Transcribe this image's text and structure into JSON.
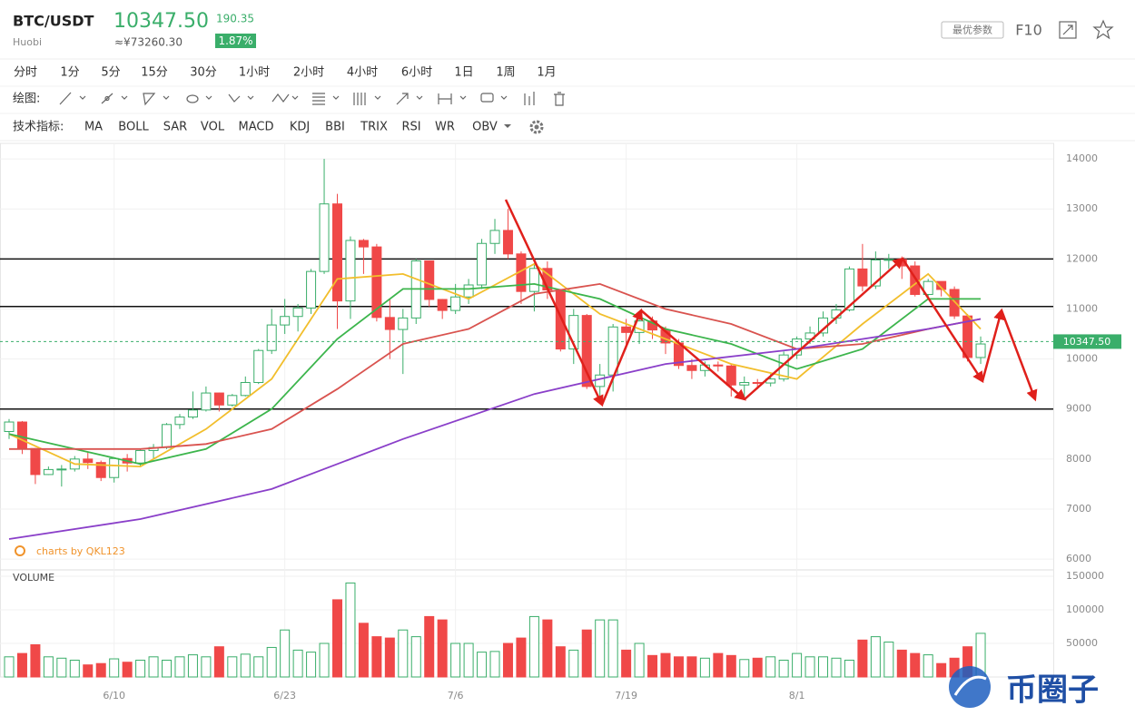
{
  "header": {
    "symbol": "BTC/USDT",
    "exchange": "Huobi",
    "price": "10347.50",
    "cny": "≈¥73260.30",
    "change": "190.35",
    "change_pct": "1.87%",
    "buttons": [
      "最优参数",
      "F10"
    ]
  },
  "periods": {
    "items": [
      "分时",
      "1分",
      "5分",
      "15分",
      "30分",
      "1小时",
      "2小时",
      "4小时",
      "6小时",
      "1日",
      "1周",
      "1月"
    ],
    "active": 9
  },
  "drawing_label": "绘图:",
  "indicators": {
    "label": "技术指标:",
    "items": [
      "MA",
      "BOLL",
      "SAR",
      "VOL",
      "MACD",
      "KDJ",
      "BBI",
      "TRIX",
      "RSI",
      "WR",
      "OBV"
    ],
    "active": [
      0,
      3
    ]
  },
  "watermark": "charts by QKL123",
  "brand": "币圈子",
  "chart_data": {
    "type": "candlestick",
    "categories": [
      null,
      null,
      null,
      null,
      null,
      null,
      null,
      null,
      "6/10",
      null,
      null,
      null,
      null,
      null,
      null,
      null,
      null,
      null,
      null,
      null,
      null,
      "6/23",
      null,
      null,
      null,
      null,
      null,
      null,
      null,
      null,
      null,
      null,
      null,
      null,
      "7/6",
      null,
      null,
      null,
      null,
      null,
      null,
      null,
      null,
      null,
      null,
      null,
      null,
      "7/19",
      null,
      null,
      null,
      null,
      null,
      null,
      null,
      null,
      null,
      null,
      null,
      null,
      "8/1",
      null,
      null,
      null,
      null,
      null,
      null,
      null,
      null,
      null,
      null,
      null,
      null,
      null,
      null
    ],
    "open": [
      8550,
      8740,
      8210,
      7690,
      7790,
      7800,
      8000,
      7930,
      7630,
      8010,
      7920,
      8170,
      8230,
      8690,
      8840,
      8980,
      9320,
      9080,
      9270,
      9530,
      10170,
      10680,
      10850,
      11020,
      11750,
      13100,
      11160,
      12370,
      12240,
      10830,
      10590,
      10820,
      11960,
      11190,
      10970,
      11240,
      11480,
      12310,
      12570,
      12100,
      11350,
      11810,
      11380,
      10200,
      10870,
      9450,
      9680,
      10640,
      10530,
      10760,
      10580,
      10320,
      9870,
      9770,
      9880,
      9860,
      9480,
      9530,
      9520,
      9600,
      10080,
      10400,
      10520,
      10820,
      10980,
      11800,
      11460,
      11980,
      11990,
      11860,
      11290,
      11550,
      11390,
      10860,
      10030
    ],
    "high": [
      8800,
      8760,
      8220,
      7850,
      7880,
      8060,
      8150,
      7970,
      8030,
      8100,
      8200,
      8300,
      8720,
      8900,
      9350,
      9450,
      9330,
      9300,
      9650,
      10200,
      11000,
      11200,
      11100,
      11800,
      14000,
      13300,
      12450,
      12400,
      12300,
      11200,
      11000,
      12000,
      11970,
      11200,
      11500,
      11600,
      12400,
      12800,
      13000,
      12150,
      11900,
      11950,
      11400,
      11000,
      10900,
      9900,
      10700,
      10800,
      10900,
      10850,
      10650,
      10400,
      10000,
      9950,
      9950,
      9900,
      9650,
      9600,
      9700,
      10150,
      10450,
      10650,
      10950,
      11100,
      11850,
      12300,
      12150,
      12100,
      12050,
      11950,
      11600,
      11550,
      11450,
      10900,
      10450
    ],
    "low": [
      8400,
      8100,
      7500,
      7680,
      7450,
      7750,
      7800,
      7560,
      7530,
      7750,
      7840,
      8000,
      8200,
      8600,
      8800,
      8950,
      8950,
      9050,
      9250,
      9500,
      10100,
      10500,
      10550,
      10900,
      11700,
      10600,
      10800,
      11700,
      10750,
      10000,
      9700,
      10700,
      11050,
      10800,
      10900,
      11100,
      11400,
      12100,
      12000,
      11100,
      10950,
      11200,
      10150,
      9900,
      9400,
      9100,
      9350,
      10200,
      10300,
      10400,
      10100,
      9800,
      9600,
      9650,
      9750,
      9250,
      9200,
      9400,
      9450,
      9550,
      10000,
      10300,
      10450,
      10700,
      10950,
      11350,
      11400,
      11800,
      11600,
      11250,
      11200,
      11250,
      10800,
      9950,
      9900
    ],
    "close": [
      8740,
      8210,
      7690,
      7790,
      7800,
      8000,
      7930,
      7630,
      8010,
      7920,
      8170,
      8230,
      8690,
      8840,
      8980,
      9320,
      9080,
      9270,
      9530,
      10170,
      10680,
      10850,
      11020,
      11750,
      13100,
      11160,
      12370,
      12240,
      10830,
      10590,
      10820,
      11960,
      11190,
      10970,
      11240,
      11480,
      12310,
      12570,
      12100,
      11350,
      11810,
      11380,
      10200,
      10870,
      9450,
      9680,
      10640,
      10530,
      10760,
      10580,
      10320,
      9870,
      9770,
      9880,
      9860,
      9480,
      9530,
      9520,
      9600,
      10080,
      10400,
      10520,
      10820,
      10980,
      11800,
      11460,
      11980,
      11990,
      11860,
      11290,
      11550,
      11390,
      10860,
      10030,
      10300
    ],
    "volume": [
      30000,
      35000,
      48000,
      30000,
      28000,
      25000,
      18000,
      20000,
      27000,
      22000,
      25000,
      30000,
      25000,
      30000,
      33000,
      30000,
      45000,
      30000,
      34000,
      30000,
      44000,
      70000,
      40000,
      37000,
      50000,
      115000,
      140000,
      80000,
      60000,
      58000,
      70000,
      60000,
      90000,
      85000,
      50000,
      50000,
      37000,
      38000,
      50000,
      58000,
      90000,
      85000,
      45000,
      40000,
      70000,
      85000,
      85000,
      40000,
      50000,
      32000,
      35000,
      30000,
      30000,
      28000,
      35000,
      32000,
      26000,
      28000,
      30000,
      25000,
      35000,
      30000,
      30000,
      28000,
      25000,
      55000,
      60000,
      52000,
      40000,
      35000,
      33000,
      20000,
      28000,
      45000,
      65000
    ],
    "up_color": "#3aae6a",
    "down_color": "#f04848",
    "series": [
      {
        "color": "#f2be2c",
        "x": [
          0,
          5,
          10,
          15,
          20,
          25,
          30,
          35,
          40,
          45,
          50,
          55,
          60,
          65,
          70,
          74
        ],
        "values": [
          8500,
          7900,
          7850,
          8600,
          9600,
          11600,
          11700,
          11200,
          11900,
          10900,
          10400,
          9900,
          9600,
          10700,
          11700,
          10600
        ]
      },
      {
        "color": "#3cb54c",
        "x": [
          0,
          5,
          10,
          15,
          20,
          25,
          30,
          35,
          40,
          45,
          50,
          55,
          60,
          65,
          70,
          74
        ],
        "values": [
          8500,
          8200,
          7900,
          8200,
          9000,
          10400,
          11400,
          11400,
          11500,
          11200,
          10600,
          10300,
          9800,
          10200,
          11200,
          11200
        ]
      },
      {
        "color": "#d9534f",
        "x": [
          0,
          5,
          10,
          15,
          20,
          25,
          30,
          35,
          40,
          45,
          50,
          55,
          60,
          65,
          70,
          74
        ],
        "values": [
          8200,
          8200,
          8200,
          8300,
          8600,
          9400,
          10300,
          10600,
          11300,
          11500,
          11000,
          10700,
          10200,
          10300,
          10600,
          10800
        ]
      },
      {
        "color": "#8a3fc9",
        "x": [
          0,
          10,
          20,
          30,
          40,
          50,
          60,
          70,
          74
        ],
        "values": [
          6400,
          6800,
          7400,
          8400,
          9300,
          9900,
          10200,
          10600,
          10800
        ]
      }
    ],
    "levels": [
      12000,
      11050,
      9000
    ],
    "ylim": [
      5820,
      14310
    ],
    "yticks": [
      6000,
      7000,
      8000,
      9000,
      10000,
      11000,
      12000,
      13000,
      14000
    ],
    "last_price": {
      "value": 10347.5,
      "label": "10347.50"
    },
    "volume_label": "VOLUME",
    "vol_ylim": [
      0,
      159500
    ],
    "vol_yticks": [
      50000,
      100000,
      150000
    ]
  }
}
